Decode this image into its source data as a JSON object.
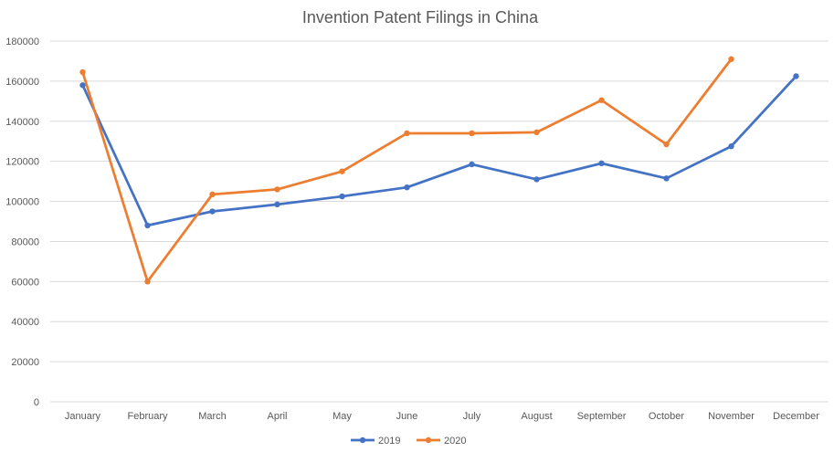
{
  "chart_data": {
    "type": "line",
    "title": "Invention Patent Filings in China",
    "xlabel": "",
    "ylabel": "",
    "categories": [
      "January",
      "February",
      "March",
      "April",
      "May",
      "June",
      "July",
      "August",
      "September",
      "October",
      "November",
      "December"
    ],
    "ylim": [
      0,
      180000
    ],
    "yticks": [
      0,
      20000,
      40000,
      60000,
      80000,
      100000,
      120000,
      140000,
      160000,
      180000
    ],
    "grid": true,
    "legend_position": "bottom",
    "series": [
      {
        "name": "2019",
        "color": "#4472c4",
        "values": [
          158000,
          88000,
          95000,
          98500,
          102500,
          107000,
          118500,
          111000,
          119000,
          111500,
          127500,
          162500
        ]
      },
      {
        "name": "2020",
        "color": "#ed7d31",
        "values": [
          164500,
          60000,
          103500,
          106000,
          115000,
          134000,
          134000,
          134500,
          150500,
          128500,
          171000,
          null
        ]
      }
    ]
  }
}
